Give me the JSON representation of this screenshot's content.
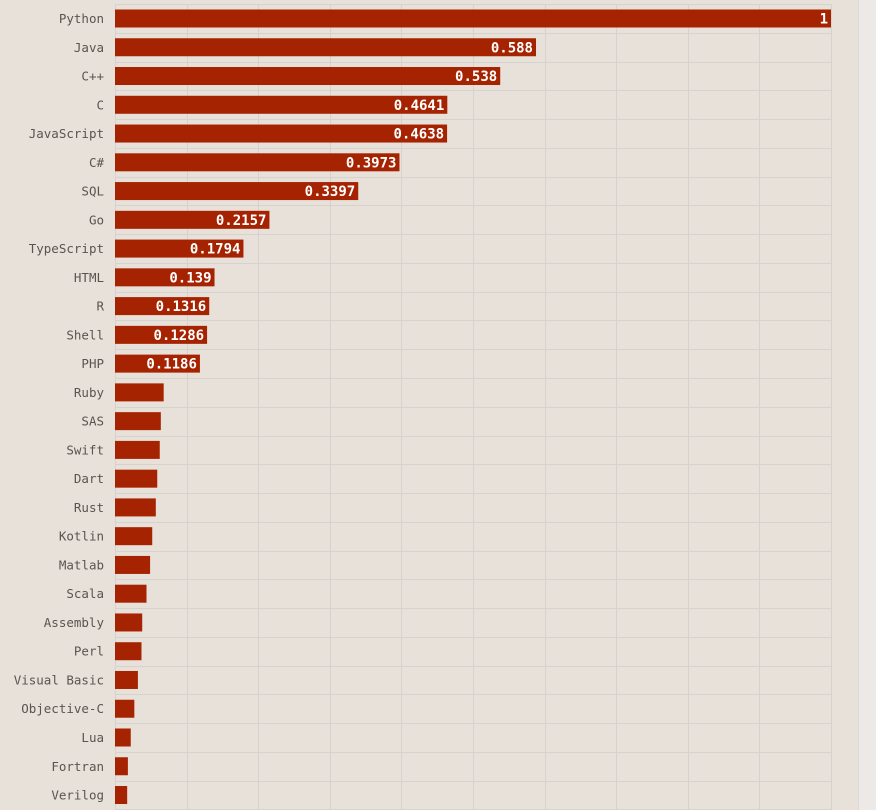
{
  "chart_data": {
    "type": "bar",
    "orientation": "horizontal",
    "categories": [
      "Python",
      "Java",
      "C++",
      "C",
      "JavaScript",
      "C#",
      "SQL",
      "Go",
      "TypeScript",
      "HTML",
      "R",
      "Shell",
      "PHP",
      "Ruby",
      "SAS",
      "Swift",
      "Dart",
      "Rust",
      "Kotlin",
      "Matlab",
      "Scala",
      "Assembly",
      "Perl",
      "Visual Basic",
      "Objective-C",
      "Lua",
      "Fortran",
      "Verilog"
    ],
    "values": [
      1,
      0.588,
      0.538,
      0.4641,
      0.4638,
      0.3973,
      0.3397,
      0.2157,
      0.1794,
      0.139,
      0.1316,
      0.1286,
      0.1186,
      0.068,
      0.064,
      0.0625,
      0.059,
      0.057,
      0.052,
      0.049,
      0.044,
      0.038,
      0.037,
      0.032,
      0.027,
      0.022,
      0.018,
      0.017
    ],
    "value_labels": [
      "1",
      "0.588",
      "0.538",
      "0.4641",
      "0.4638",
      "0.3973",
      "0.3397",
      "0.2157",
      "0.1794",
      "0.139",
      "0.1316",
      "0.1286",
      "0.1186",
      "",
      "",
      "",
      "",
      "",
      "",
      "",
      "",
      "",
      "",
      "",
      "",
      "",
      "",
      ""
    ],
    "xlim": [
      0,
      1
    ],
    "grid": true,
    "bar_color": "#a52300",
    "background_color": "#e8e1d9"
  }
}
